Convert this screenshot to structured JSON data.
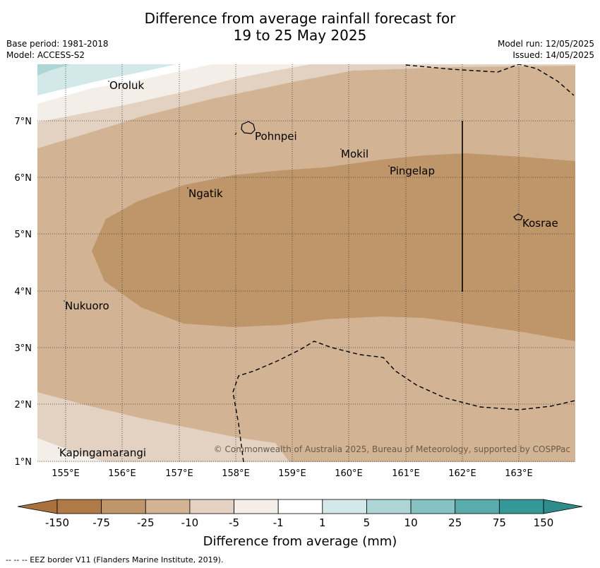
{
  "header": {
    "title_line1": "Difference from average rainfall forecast for",
    "title_line2": "19 to 25 May 2025",
    "base_period": "Base period: 1981-2018",
    "model": "Model: ACCESS-S2",
    "model_run": "Model run: 12/05/2025",
    "issued": "Issued: 14/05/2025"
  },
  "map": {
    "lon_ticks": [
      "155°E",
      "156°E",
      "157°E",
      "158°E",
      "159°E",
      "160°E",
      "161°E",
      "162°E",
      "163°E"
    ],
    "lat_ticks": [
      "7°N",
      "6°N",
      "5°N",
      "4°N",
      "3°N",
      "2°N",
      "1°N"
    ],
    "places": [
      {
        "name": "Oroluk"
      },
      {
        "name": "Pohnpei"
      },
      {
        "name": "Mokil"
      },
      {
        "name": "Pingelap"
      },
      {
        "name": "Ngatik"
      },
      {
        "name": "Kosrae"
      },
      {
        "name": "Nukuoro"
      },
      {
        "name": "Kapingamarangi"
      }
    ],
    "copyright": "© Commonwealth of Australia 2025, Bureau of Meteorology, supported by COSPPac",
    "colors": {
      "lt_minus75": "#bf956a",
      "minus75_25": "#d2b394",
      "minus25_10": "#e3d2c1",
      "minus10_5": "#f3eee8",
      "minus5_1": "#ffffff",
      "plus1_5": "#d3e8e8",
      "plus5_10": "#aed6d6",
      "plus10_25": "#86c2c2",
      "plus25_75": "#5aacac",
      "plus75_150": "#359898",
      "lt_minus150": "#a9713b",
      "minus150_75": "#b07a47"
    }
  },
  "legend": {
    "tick_labels": [
      "-150",
      "-75",
      "-25",
      "-10",
      "-5",
      "-1",
      "1",
      "5",
      "10",
      "25",
      "75",
      "150"
    ],
    "bin_colors": [
      "#b07a47",
      "#bf956a",
      "#d2b394",
      "#e3d2c1",
      "#f3eee8",
      "#ffffff",
      "#d3e8e8",
      "#aed6d6",
      "#86c2c2",
      "#5aacac",
      "#359898"
    ],
    "low_extend_color": "#a9713b",
    "high_extend_color": "#2f8c8c",
    "label": "Difference from average (mm)"
  },
  "footer": {
    "eez_note": "--  --  -- EEZ border V11 (Flanders Marine Institute, 2019)."
  }
}
